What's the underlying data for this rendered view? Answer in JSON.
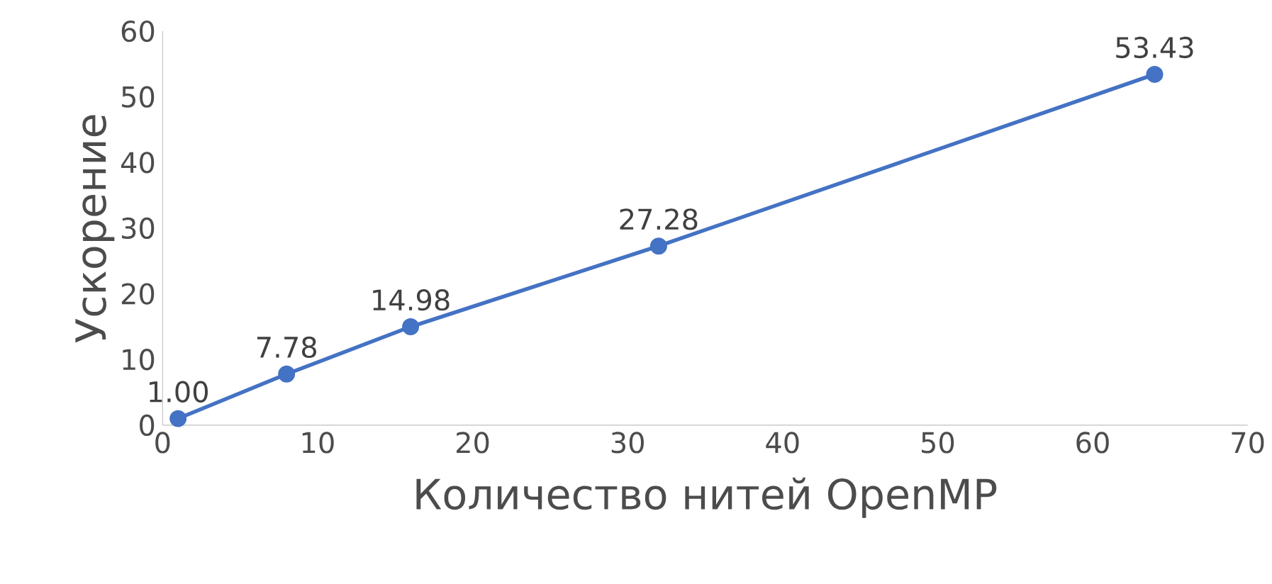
{
  "chart_data": {
    "type": "line",
    "xlabel": "Количество нитей OpenMP",
    "ylabel": "Ускорение",
    "x": [
      1,
      8,
      16,
      32,
      64
    ],
    "series": [
      {
        "color": "#4472c4",
        "values": [
          1.0,
          7.78,
          14.98,
          27.28,
          53.43
        ],
        "value_labels": [
          "1.00",
          "7.78",
          "14.98",
          "27.28",
          "53.43"
        ]
      }
    ],
    "xlim": [
      0,
      70
    ],
    "xticks": [
      0,
      10,
      20,
      30,
      40,
      50,
      60,
      70
    ],
    "ylim": [
      0,
      60
    ],
    "yticks": [
      0,
      10,
      20,
      30,
      40,
      50,
      60
    ],
    "marker": "circle",
    "line_style": "solid"
  }
}
